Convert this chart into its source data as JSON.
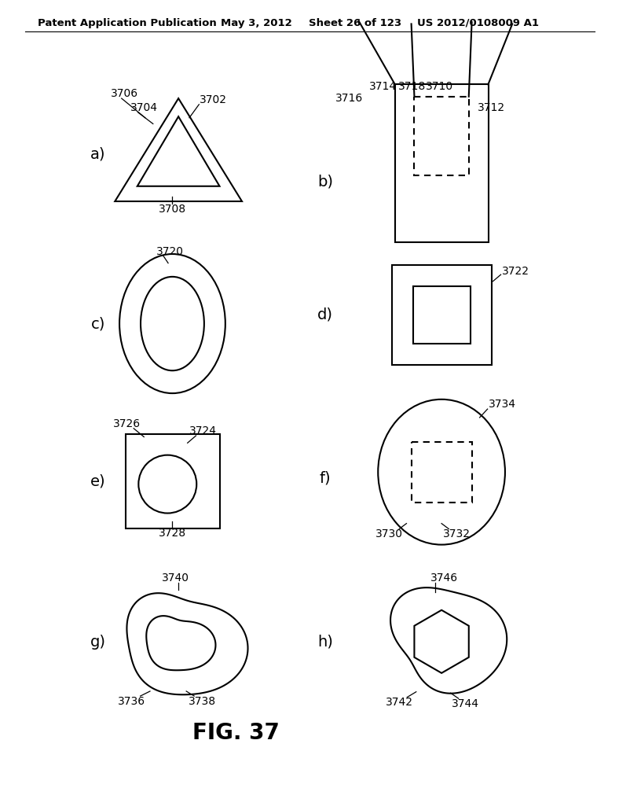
{
  "header_left": "Patent Application Publication",
  "header_mid": "May 3, 2012",
  "header_right_1": "Sheet 26 of 123",
  "header_right_2": "US 2012/0108009 A1",
  "fig_label": "FIG. 37",
  "background": "#ffffff",
  "line_color": "#000000",
  "lw": 1.5,
  "lw_thin": 0.9
}
